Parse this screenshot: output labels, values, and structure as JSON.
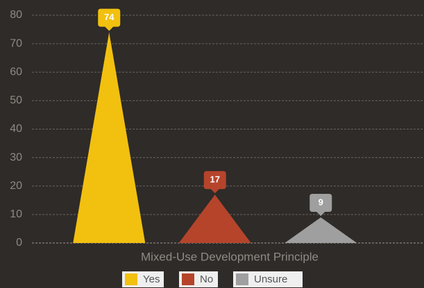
{
  "chart_data": {
    "type": "bar",
    "x_label": "Mixed-Use Development Principle",
    "categories": [
      "Yes",
      "No",
      "Unsure"
    ],
    "values": [
      74,
      17,
      9
    ],
    "colors": [
      "#f2c00f",
      "#b5442b",
      "#9f9f9f"
    ],
    "ylim": [
      0,
      80
    ],
    "yticks": [
      0,
      10,
      20,
      30,
      40,
      50,
      60,
      70,
      80
    ],
    "grid": true,
    "legend": "bottom"
  }
}
